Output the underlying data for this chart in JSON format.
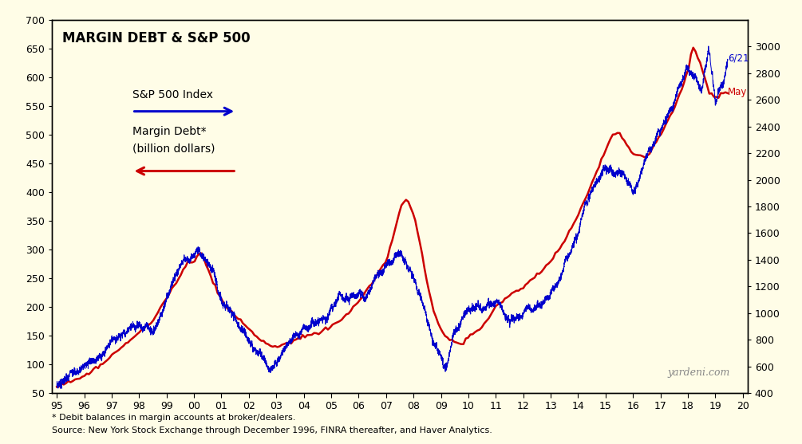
{
  "title": "MARGIN DEBT & S&P 500",
  "bg_color": "#FFFDE7",
  "sp500_color": "#0000CC",
  "margin_color": "#CC0000",
  "sp500_label": "S&P 500 Index",
  "margin_label1": "Margin Debt*",
  "margin_label2": "(billion dollars)",
  "annotation_sp500": "6/21",
  "annotation_margin": "May",
  "watermark": "yardeni.com",
  "footnote1": "* Debit balances in margin accounts at broker/dealers.",
  "footnote2": "Source: New York Stock Exchange through December 1996, FINRA thereafter, and Haver Analytics.",
  "left_ylim": [
    50,
    700
  ],
  "left_yticks": [
    50,
    100,
    150,
    200,
    250,
    300,
    350,
    400,
    450,
    500,
    550,
    600,
    650,
    700
  ],
  "right_ylim": [
    400,
    3200
  ],
  "right_yticks": [
    400,
    600,
    800,
    1000,
    1200,
    1400,
    1600,
    1800,
    2000,
    2200,
    2400,
    2600,
    2800,
    3000
  ],
  "xstart": 1994.83,
  "xend": 2020.17,
  "margin_knots_x": [
    1995.0,
    1995.5,
    1996.0,
    1996.5,
    1997.0,
    1997.5,
    1998.0,
    1998.5,
    1999.0,
    1999.5,
    1999.75,
    2000.0,
    2000.25,
    2000.5,
    2000.75,
    2001.0,
    2001.5,
    2002.0,
    2002.5,
    2002.83,
    2003.0,
    2003.5,
    2004.0,
    2004.5,
    2005.0,
    2005.5,
    2006.0,
    2006.5,
    2007.0,
    2007.25,
    2007.5,
    2007.75,
    2008.0,
    2008.25,
    2008.5,
    2008.75,
    2009.0,
    2009.25,
    2009.5,
    2009.75,
    2010.0,
    2010.5,
    2011.0,
    2011.5,
    2012.0,
    2012.5,
    2013.0,
    2013.5,
    2014.0,
    2014.5,
    2014.75,
    2015.0,
    2015.25,
    2015.5,
    2016.0,
    2016.5,
    2017.0,
    2017.5,
    2018.0,
    2018.17,
    2018.5,
    2018.75,
    2019.0,
    2019.33,
    2019.5
  ],
  "margin_knots_y": [
    60,
    70,
    80,
    95,
    115,
    135,
    155,
    175,
    215,
    255,
    275,
    278,
    298,
    265,
    240,
    210,
    185,
    160,
    140,
    132,
    130,
    138,
    148,
    155,
    165,
    185,
    210,
    240,
    280,
    320,
    370,
    390,
    360,
    310,
    240,
    190,
    160,
    145,
    138,
    135,
    148,
    165,
    200,
    220,
    235,
    255,
    280,
    315,
    360,
    415,
    445,
    475,
    500,
    505,
    465,
    460,
    500,
    545,
    610,
    655,
    620,
    575,
    565,
    575,
    574
  ],
  "sp500_knots_x": [
    1995.0,
    1995.5,
    1996.0,
    1996.5,
    1997.0,
    1997.5,
    1998.0,
    1998.5,
    1999.0,
    1999.5,
    2000.0,
    2000.17,
    2000.5,
    2000.75,
    2001.0,
    2001.5,
    2002.0,
    2002.5,
    2002.75,
    2003.0,
    2003.5,
    2004.0,
    2004.5,
    2005.0,
    2005.5,
    2006.0,
    2006.5,
    2007.0,
    2007.5,
    2007.75,
    2008.0,
    2008.25,
    2008.5,
    2008.75,
    2009.0,
    2009.17,
    2009.5,
    2009.75,
    2010.0,
    2010.5,
    2011.0,
    2011.5,
    2012.0,
    2012.5,
    2013.0,
    2013.5,
    2014.0,
    2014.5,
    2015.0,
    2015.5,
    2016.0,
    2016.5,
    2017.0,
    2017.5,
    2018.0,
    2018.17,
    2018.5,
    2018.75,
    2019.0,
    2019.33,
    2019.5
  ],
  "sp500_knots_y": [
    470,
    545,
    640,
    700,
    855,
    935,
    1020,
    970,
    1230,
    1430,
    1480,
    1530,
    1430,
    1330,
    1180,
    1100,
    980,
    880,
    800,
    850,
    1000,
    1110,
    1135,
    1180,
    1220,
    1280,
    1360,
    1440,
    1530,
    1490,
    1380,
    1270,
    1070,
    900,
    820,
    735,
    990,
    1080,
    1130,
    1170,
    1280,
    1160,
    1250,
    1380,
    1480,
    1680,
    1820,
    1950,
    2060,
    2050,
    1940,
    2140,
    2280,
    2490,
    2800,
    2720,
    2640,
    2930,
    2480,
    2730,
    2950
  ]
}
